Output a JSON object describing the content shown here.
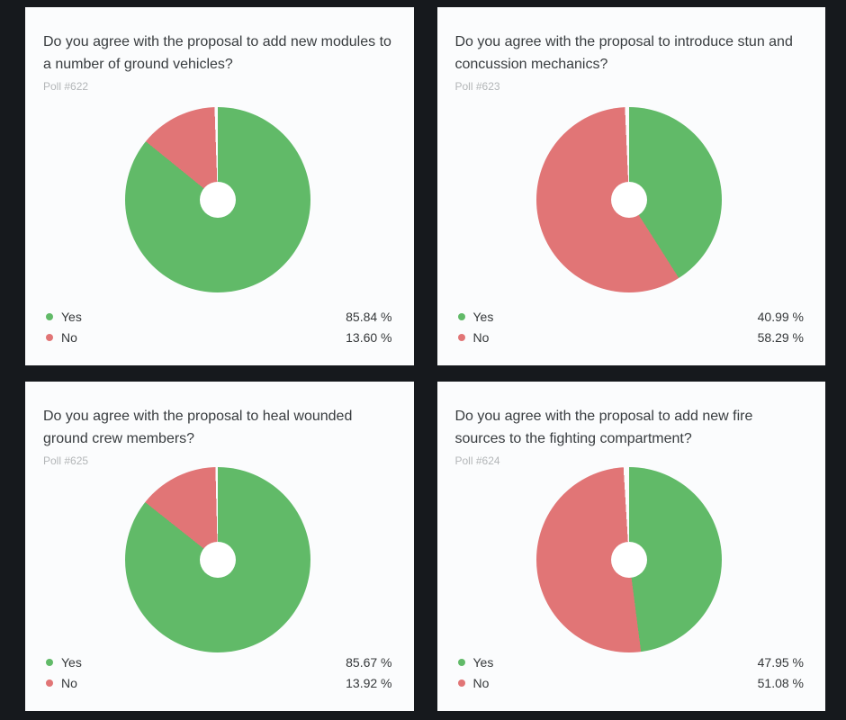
{
  "theme": {
    "page_bg": "#16191d",
    "card_bg": "#fbfcfd",
    "hole_color": "#ffffff",
    "title_color": "#383c3f",
    "poll_label_color": "#b3b6b8",
    "legend_text_color": "#35383a",
    "yes_color": "#61ba68",
    "no_color": "#e17576"
  },
  "chart_data": [
    {
      "type": "pie",
      "donut": true,
      "title": "Do you agree with the proposal to add new modules to a number of ground vehicles?",
      "subtitle": "Poll #622",
      "labels": [
        "Yes",
        "No"
      ],
      "values": [
        85.84,
        13.6
      ],
      "value_labels": [
        "85.84 %",
        "13.60 %"
      ],
      "colors": [
        "#61ba68",
        "#e17576"
      ],
      "unit": "%",
      "start_angle": "12 o'clock, clockwise",
      "legend_position": "bottom"
    },
    {
      "type": "pie",
      "donut": true,
      "title": "Do you agree with the proposal to introduce stun and concussion mechanics?",
      "subtitle": "Poll #623",
      "labels": [
        "Yes",
        "No"
      ],
      "values": [
        40.99,
        58.29
      ],
      "value_labels": [
        "40.99 %",
        "58.29 %"
      ],
      "colors": [
        "#61ba68",
        "#e17576"
      ],
      "unit": "%",
      "start_angle": "12 o'clock, clockwise",
      "legend_position": "bottom"
    },
    {
      "type": "pie",
      "donut": true,
      "title": "Do you agree with the proposal to heal wounded ground crew members?",
      "subtitle": "Poll #625",
      "labels": [
        "Yes",
        "No"
      ],
      "values": [
        85.67,
        13.92
      ],
      "value_labels": [
        "85.67 %",
        "13.92 %"
      ],
      "colors": [
        "#61ba68",
        "#e17576"
      ],
      "unit": "%",
      "start_angle": "12 o'clock, clockwise",
      "legend_position": "bottom"
    },
    {
      "type": "pie",
      "donut": true,
      "title": "Do you agree with the proposal to add new fire sources to the fighting compartment?",
      "subtitle": "Poll #624",
      "labels": [
        "Yes",
        "No"
      ],
      "values": [
        47.95,
        51.08
      ],
      "value_labels": [
        "47.95 %",
        "51.08 %"
      ],
      "colors": [
        "#61ba68",
        "#e17576"
      ],
      "unit": "%",
      "start_angle": "12 o'clock, clockwise",
      "legend_position": "bottom"
    }
  ]
}
